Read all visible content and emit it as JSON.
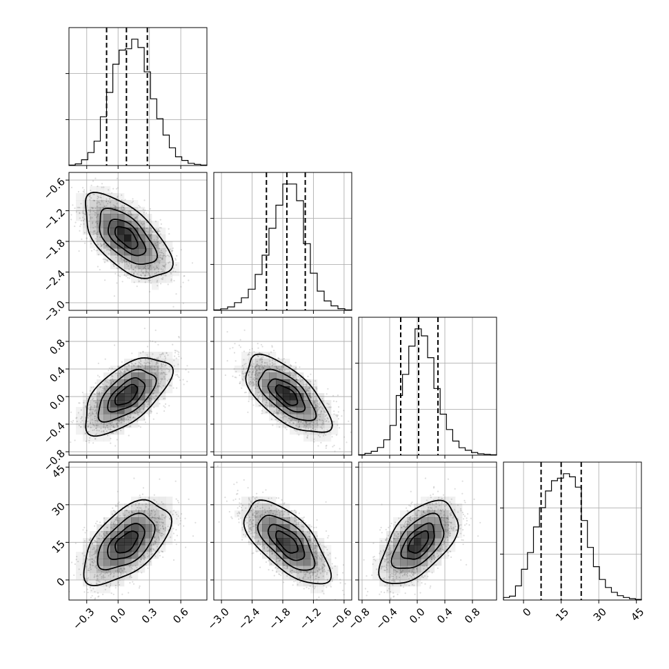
{
  "chart_data": {
    "type": "corner",
    "parameters": [
      {
        "name": "",
        "mean": 0.08,
        "std": 0.2,
        "range": [
          -0.47,
          0.85
        ],
        "ticks": [
          -0.3,
          0.0,
          0.3,
          0.6
        ],
        "tick_labels": [
          "−0.3",
          "0.0",
          "0.3",
          "0.6"
        ],
        "quantiles": [
          -0.11,
          0.08,
          0.28
        ],
        "histogram": [
          0.004,
          0.013,
          0.045,
          0.101,
          0.19,
          0.38,
          0.57,
          0.79,
          0.9,
          0.91,
          0.985,
          0.92,
          0.73,
          0.52,
          0.365,
          0.237,
          0.138,
          0.068,
          0.04,
          0.017,
          0.009,
          0.004
        ]
      },
      {
        "name": "",
        "mean": -1.72,
        "std": 0.4,
        "range": [
          -3.15,
          -0.45
        ],
        "ticks": [
          -3.0,
          -2.4,
          -1.8,
          -1.2,
          -0.6
        ],
        "tick_labels": [
          "−3.0",
          "−2.4",
          "−1.8",
          "−1.2",
          "−0.6"
        ],
        "quantiles": [
          -2.12,
          -1.72,
          -1.36
        ],
        "histogram": [
          0.004,
          0.012,
          0.027,
          0.06,
          0.098,
          0.165,
          0.28,
          0.43,
          0.64,
          0.82,
          0.985,
          0.985,
          0.855,
          0.52,
          0.29,
          0.15,
          0.073,
          0.035,
          0.013,
          0.004
        ]
      },
      {
        "name": "",
        "mean": 0.02,
        "std": 0.27,
        "range": [
          -0.85,
          1.15
        ],
        "ticks": [
          -0.8,
          -0.4,
          0.0,
          0.4,
          0.8
        ],
        "tick_labels": [
          "−0.8",
          "−0.4",
          "0.0",
          "0.4",
          "0.8"
        ],
        "quantiles": [
          -0.24,
          0.02,
          0.3
        ],
        "histogram": [
          0.004,
          0.014,
          0.03,
          0.06,
          0.12,
          0.232,
          0.465,
          0.63,
          0.85,
          0.985,
          0.93,
          0.76,
          0.52,
          0.32,
          0.2,
          0.11,
          0.058,
          0.038,
          0.021,
          0.011,
          0.007,
          0.004
        ]
      },
      {
        "name": "",
        "mean": 15.0,
        "std": 8.0,
        "range": [
          -8.0,
          47.0
        ],
        "ticks": [
          0,
          15,
          30,
          45
        ],
        "tick_labels": [
          "0",
          "15",
          "30",
          "45"
        ],
        "quantiles": [
          7.0,
          15.0,
          23.0
        ],
        "histogram": [
          0.02,
          0.03,
          0.11,
          0.24,
          0.37,
          0.57,
          0.72,
          0.85,
          0.93,
          0.95,
          0.985,
          0.96,
          0.88,
          0.62,
          0.41,
          0.26,
          0.16,
          0.098,
          0.06,
          0.034,
          0.02,
          0.011,
          0.005
        ]
      }
    ],
    "correlations": {
      "1-0": -0.6,
      "2-0": 0.6,
      "2-1": -0.65,
      "3-0": 0.55,
      "3-1": -0.65,
      "3-2": 0.55
    },
    "contour_levels_sigma": [
      0.5,
      1.0,
      1.5,
      2.0
    ],
    "colors": {
      "lines": "#000000",
      "points": "#8a8a8a",
      "density": "#000000",
      "grid": "#b0b0b0"
    },
    "grid": true
  }
}
